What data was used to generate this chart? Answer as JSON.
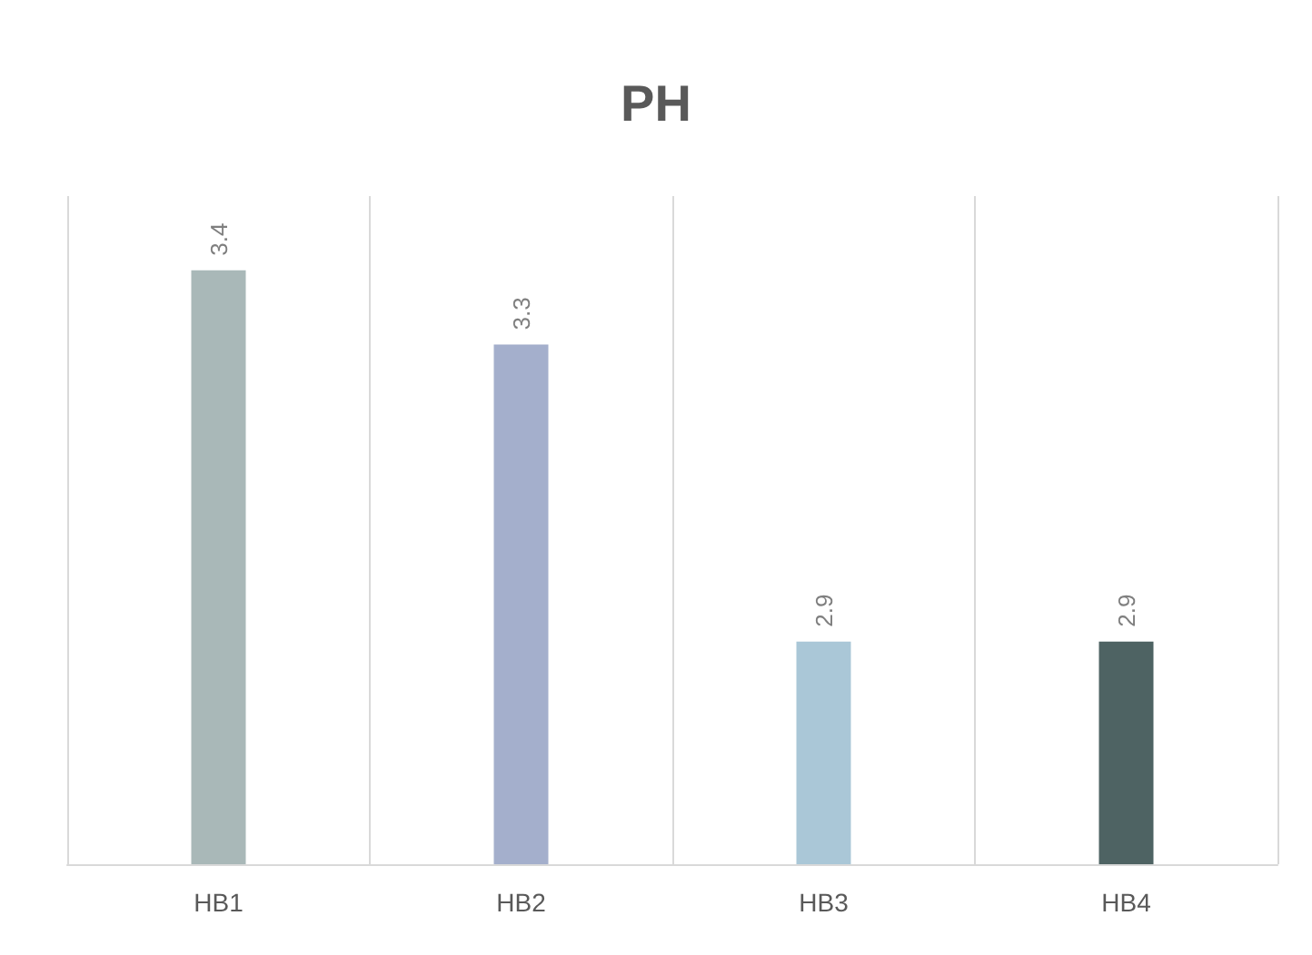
{
  "chart_data": {
    "type": "bar",
    "title": "PH",
    "categories": [
      "HB1",
      "HB2",
      "HB3",
      "HB4"
    ],
    "values": [
      3.4,
      3.3,
      2.9,
      2.9
    ],
    "colors": [
      "#a9b8b8",
      "#a4afcc",
      "#aac7d7",
      "#4e6363"
    ],
    "ylim": [
      2.6,
      3.5
    ],
    "data_labels": true,
    "grid": "x",
    "tick_labels": "x"
  }
}
